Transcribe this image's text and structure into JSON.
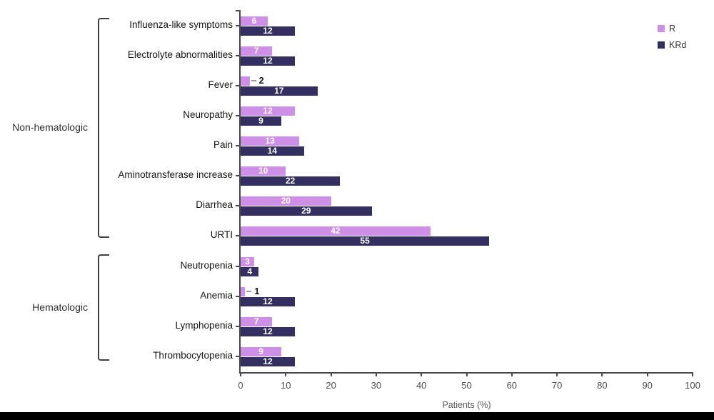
{
  "chart_data": {
    "type": "bar",
    "orientation": "horizontal",
    "xlabel": "Patients (%)",
    "xlim": [
      0,
      100
    ],
    "xticks": [
      0,
      10,
      20,
      30,
      40,
      50,
      60,
      70,
      80,
      90,
      100
    ],
    "grid": false,
    "legend_position": "top-right",
    "series_names": [
      "R",
      "KRd"
    ],
    "colors": {
      "R": "#CE8FE7",
      "KRd": "#332F61"
    },
    "legend": [
      {
        "name": "R",
        "color": "#CE8FE7"
      },
      {
        "name": "KRd",
        "color": "#332F61"
      }
    ],
    "groups": [
      {
        "label": "Non-hematologic",
        "categories": [
          {
            "label": "Influenza-like symptoms",
            "R": 6,
            "KRd": 12
          },
          {
            "label": "Electrolyte abnormalities",
            "R": 7,
            "KRd": 12
          },
          {
            "label": "Fever",
            "R": 2,
            "KRd": 17
          },
          {
            "label": "Neuropathy",
            "R": 12,
            "KRd": 9
          },
          {
            "label": "Pain",
            "R": 13,
            "KRd": 14
          },
          {
            "label": "Aminotransferase increase",
            "R": 10,
            "KRd": 22
          },
          {
            "label": "Diarrhea",
            "R": 20,
            "KRd": 29
          },
          {
            "label": "URTI",
            "R": 42,
            "KRd": 55
          }
        ]
      },
      {
        "label": "Hematologic",
        "categories": [
          {
            "label": "Neutropenia",
            "R": 3,
            "KRd": 4
          },
          {
            "label": "Anemia",
            "R": 1,
            "KRd": 12
          },
          {
            "label": "Lymphopenia",
            "R": 7,
            "KRd": 12
          },
          {
            "label": "Thrombocytopenia",
            "R": 9,
            "KRd": 12
          }
        ]
      }
    ]
  },
  "page": {
    "bottom_bar_color": "#000000"
  }
}
